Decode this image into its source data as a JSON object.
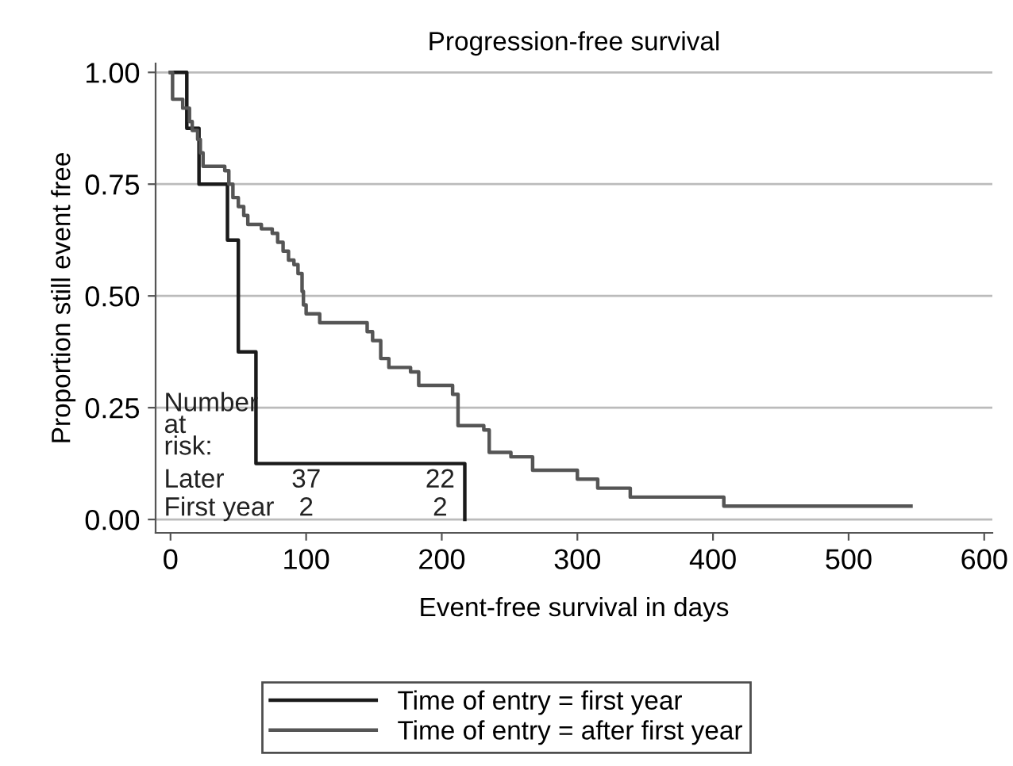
{
  "chart_data": {
    "type": "step",
    "title": "Progression-free survival",
    "xlabel": "Event-free survival in days",
    "ylabel": "Proportion still event free",
    "xlim": [
      -11,
      606
    ],
    "ylim": [
      -0.03,
      1.02
    ],
    "xticks": [
      0,
      100,
      200,
      300,
      400,
      500,
      600
    ],
    "yticks": [
      {
        "value": 0,
        "label": "0.00"
      },
      {
        "value": 0.25,
        "label": "0.25"
      },
      {
        "value": 0.5,
        "label": "0.50"
      },
      {
        "value": 0.75,
        "label": "0.75"
      },
      {
        "value": 1,
        "label": "1.00"
      }
    ],
    "grid": "y",
    "legend": "bottom",
    "line_style": "solid",
    "marker": "none",
    "series": [
      {
        "name": "Time of entry = first year",
        "color": "#1a1a1a",
        "x": [
          0,
          12,
          21,
          42,
          50,
          63,
          217
        ],
        "values": [
          1,
          0.875,
          0.75,
          0.625,
          0.375,
          0.125,
          0
        ]
      },
      {
        "name": "Time of entry = after first year",
        "color": "#555555",
        "x": [
          0,
          1.5,
          9,
          14,
          16,
          20,
          22,
          24,
          40,
          43,
          46,
          50,
          54,
          57,
          67,
          75,
          79,
          83,
          87,
          91,
          94,
          97,
          98,
          100,
          110,
          132,
          145,
          149,
          155,
          161,
          177,
          183,
          208,
          212,
          231,
          235,
          251,
          267,
          300,
          315,
          339,
          408,
          546
        ],
        "values": [
          1,
          0.94,
          0.92,
          0.89,
          0.87,
          0.85,
          0.82,
          0.79,
          0.78,
          0.75,
          0.72,
          0.7,
          0.68,
          0.66,
          0.65,
          0.64,
          0.62,
          0.6,
          0.58,
          0.57,
          0.55,
          0.51,
          0.48,
          0.46,
          0.44,
          0.44,
          0.42,
          0.4,
          0.36,
          0.34,
          0.33,
          0.3,
          0.28,
          0.21,
          0.2,
          0.15,
          0.14,
          0.11,
          0.09,
          0.07,
          0.05,
          0.03,
          0.03
        ]
      }
    ],
    "annotations": [
      "Number at risk:",
      "Later",
      "37",
      "22",
      "First year",
      "2",
      "2"
    ]
  }
}
